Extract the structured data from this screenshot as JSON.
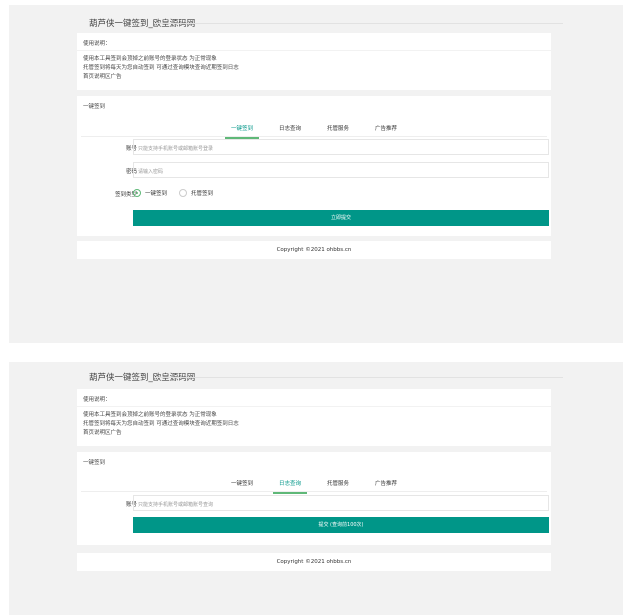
{
  "site_title": "葫芦侠一键签到_欧皇源码网",
  "notes": {
    "heading": "使用说明：",
    "lines": [
      "使用本工具签到会顶掉之前账号的登录状态 为正常现象",
      "托管签到将每天为您自动签到 可通过查询模块查询近期签到日志",
      "首页说明区广告"
    ]
  },
  "panel_title": "一键签到",
  "tabs": [
    "一键签到",
    "日志查询",
    "托管服务",
    "广告推荐"
  ],
  "signin": {
    "account_label": "账号",
    "account_placeholder": "只能支持手机账号或邮箱账号登录",
    "password_label": "密码",
    "password_placeholder": "请输入密码",
    "type_label": "签到类型",
    "options": [
      "一键签到",
      "托管签到"
    ],
    "selected": "一键签到",
    "submit": "立即提交"
  },
  "query": {
    "account_label": "账号",
    "account_placeholder": "只能支持手机账号或邮箱账号查询",
    "submit": "提交 (查询前100次)"
  },
  "footer": "Copyright ©2021 ohbbs.cn",
  "colors": {
    "accent": "#009688",
    "tab_underline": "#5fb878"
  }
}
